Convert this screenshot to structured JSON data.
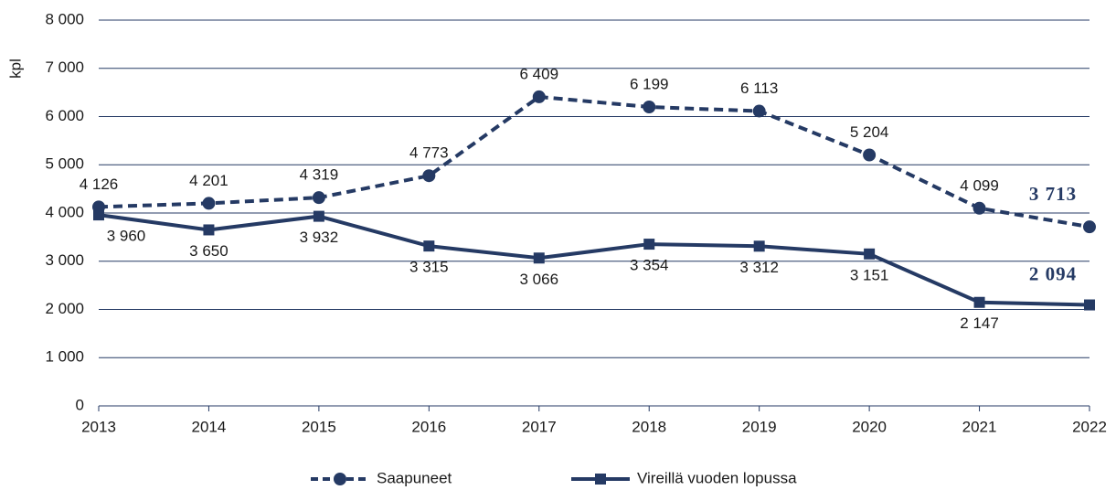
{
  "chart_data": {
    "type": "line",
    "y_label": "kpl",
    "categories": [
      "2013",
      "2014",
      "2015",
      "2016",
      "2017",
      "2018",
      "2019",
      "2020",
      "2021",
      "2022"
    ],
    "series": [
      {
        "name": "Saapuneet",
        "color": "#253a64",
        "dash": true,
        "marker": "circle",
        "values": [
          4126,
          4201,
          4319,
          4773,
          6409,
          6199,
          6113,
          5204,
          4099,
          3713
        ],
        "value_labels": [
          "4 126",
          "4 201",
          "4 319",
          "4 773",
          "6 409",
          "6 199",
          "6 113",
          "5 204",
          "4 099",
          "3 713"
        ]
      },
      {
        "name": "Vireillä vuoden lopussa",
        "color": "#253a64",
        "dash": false,
        "marker": "square",
        "values": [
          3960,
          3650,
          3932,
          3315,
          3066,
          3354,
          3312,
          3151,
          2147,
          2094
        ],
        "value_labels": [
          "3 960",
          "3 650",
          "3 932",
          "3 315",
          "3 066",
          "3 354",
          "3 312",
          "3 151",
          "2 147",
          "2 094"
        ]
      }
    ],
    "ylim": [
      0,
      8000
    ],
    "yticks": [
      0,
      {
        "value": 1000,
        "label": "1 000"
      },
      {
        "value": 2000,
        "label": "2 000"
      },
      {
        "value": 3000,
        "label": "3 000"
      },
      {
        "value": 4000,
        "label": "4 000"
      },
      {
        "value": 5000,
        "label": "5 000"
      },
      {
        "value": 6000,
        "label": "6 000"
      },
      {
        "value": 7000,
        "label": "7 000"
      },
      {
        "value": 8000,
        "label": "8 000"
      }
    ],
    "grid": true
  }
}
